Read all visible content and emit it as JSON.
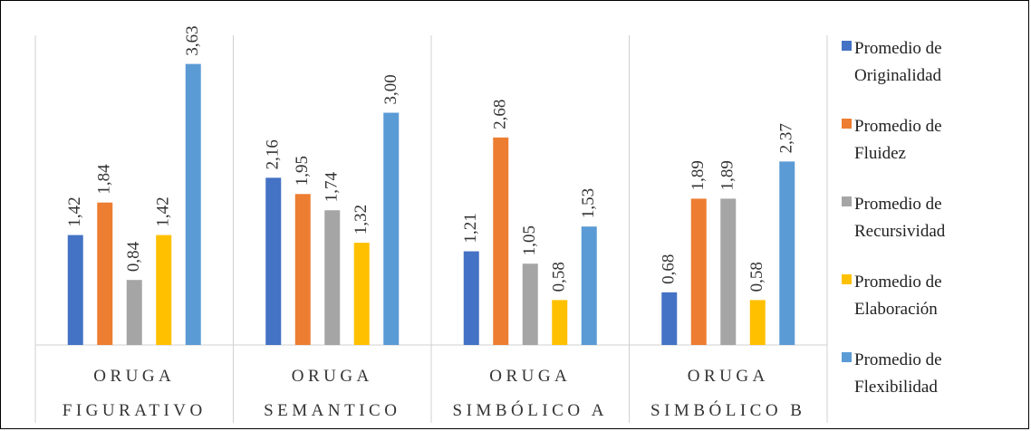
{
  "chart_data": {
    "type": "bar",
    "categories": [
      [
        "ORUGA",
        "FIGURATIVO"
      ],
      [
        "ORUGA",
        "SEMANTICO"
      ],
      [
        "ORUGA",
        "SIMBÓLICO A"
      ],
      [
        "ORUGA",
        "SIMBÓLICO B"
      ]
    ],
    "series": [
      {
        "name": [
          "Promedio de",
          "Originalidad"
        ],
        "color": "#4472C4",
        "values": [
          1.42,
          2.16,
          1.21,
          0.68
        ],
        "labels": [
          "1,42",
          "2,16",
          "1,21",
          "0,68"
        ]
      },
      {
        "name": [
          "Promedio de",
          "Fluidez"
        ],
        "color": "#ED7D31",
        "values": [
          1.84,
          1.95,
          2.68,
          1.89
        ],
        "labels": [
          "1,84",
          "1,95",
          "2,68",
          "1,89"
        ]
      },
      {
        "name": [
          "Promedio de",
          "Recursividad"
        ],
        "color": "#A5A5A5",
        "values": [
          0.84,
          1.74,
          1.05,
          1.89
        ],
        "labels": [
          "0,84",
          "1,74",
          "1,05",
          "1,89"
        ]
      },
      {
        "name": [
          "Promedio de",
          "Elaboración"
        ],
        "color": "#FFC000",
        "values": [
          1.42,
          1.32,
          0.58,
          0.58
        ],
        "labels": [
          "1,42",
          "1,32",
          "0,58",
          "0,58"
        ]
      },
      {
        "name": [
          "Promedio de",
          "Flexibilidad"
        ],
        "color": "#5B9BD5",
        "values": [
          3.63,
          3.0,
          1.53,
          2.37
        ],
        "labels": [
          "3,63",
          "3,00",
          "1,53",
          "2,37"
        ]
      }
    ],
    "ylim": [
      0,
      4
    ],
    "legend": "right",
    "grid": false
  }
}
